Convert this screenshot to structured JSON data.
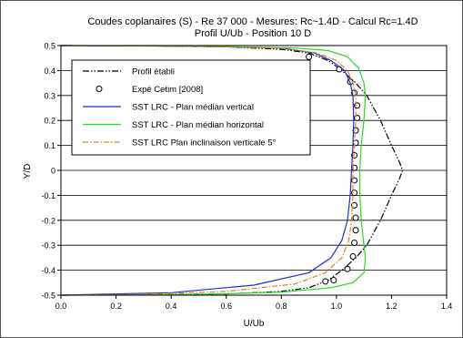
{
  "chart_data": {
    "type": "line",
    "title": "Coudes coplanaires (S) - Re 37 000  - Mesures: Rc~1.4D - Calcul Rc=1.4D",
    "subtitle": "Profil U/Ub - Position 10 D",
    "xlabel": "U/Ub",
    "ylabel": "Y/D",
    "xlim": [
      0,
      1.4
    ],
    "ylim": [
      -0.5,
      0.5
    ],
    "x_ticks": [
      "0.0",
      "0.2",
      "0.4",
      "0.6",
      "0.8",
      "1.0",
      "1.2",
      "1.4"
    ],
    "y_ticks": [
      "-0.5",
      "-0.4",
      "-0.3",
      "-0.2",
      "-0.1",
      "0",
      "0.1",
      "0.2",
      "0.3",
      "0.4",
      "0.5"
    ],
    "grid": "horizontal",
    "legend_position": "top-left",
    "series": [
      {
        "name": "Profil établi",
        "style": "dash-dot-dot",
        "color": "#000000",
        "points": [
          [
            0,
            0.5
          ],
          [
            0.3,
            0.499
          ],
          [
            0.6,
            0.495
          ],
          [
            0.8,
            0.485
          ],
          [
            0.9,
            0.47
          ],
          [
            0.97,
            0.44
          ],
          [
            1.02,
            0.4
          ],
          [
            1.07,
            0.35
          ],
          [
            1.11,
            0.3
          ],
          [
            1.16,
            0.2
          ],
          [
            1.2,
            0.1
          ],
          [
            1.23,
            0.03
          ],
          [
            1.24,
            0
          ],
          [
            1.23,
            -0.03
          ],
          [
            1.2,
            -0.1
          ],
          [
            1.16,
            -0.2
          ],
          [
            1.11,
            -0.3
          ],
          [
            1.07,
            -0.35
          ],
          [
            1.02,
            -0.4
          ],
          [
            0.97,
            -0.44
          ],
          [
            0.9,
            -0.47
          ],
          [
            0.8,
            -0.485
          ],
          [
            0.6,
            -0.495
          ],
          [
            0.3,
            -0.499
          ],
          [
            0,
            -0.5
          ]
        ]
      },
      {
        "name": "Expé Cetim [2008]",
        "style": "markers",
        "color": "#000000",
        "points": [
          [
            0.9,
            0.455
          ],
          [
            1.01,
            0.405
          ],
          [
            1.05,
            0.355
          ],
          [
            1.065,
            0.31
          ],
          [
            1.075,
            0.26
          ],
          [
            1.075,
            0.21
          ],
          [
            1.07,
            0.16
          ],
          [
            1.07,
            0.11
          ],
          [
            1.065,
            0.06
          ],
          [
            1.065,
            0.01
          ],
          [
            1.065,
            -0.04
          ],
          [
            1.065,
            -0.09
          ],
          [
            1.065,
            -0.14
          ],
          [
            1.07,
            -0.19
          ],
          [
            1.07,
            -0.24
          ],
          [
            1.065,
            -0.29
          ],
          [
            1.06,
            -0.345
          ],
          [
            1.04,
            -0.395
          ],
          [
            0.99,
            -0.44
          ],
          [
            0.96,
            -0.445
          ]
        ]
      },
      {
        "name": "SST LRC - Plan médian vertical",
        "style": "solid",
        "color": "#1f2fd6",
        "points": [
          [
            0,
            0.5
          ],
          [
            0.5,
            0.497
          ],
          [
            0.8,
            0.49
          ],
          [
            0.92,
            0.47
          ],
          [
            0.98,
            0.44
          ],
          [
            1.03,
            0.4
          ],
          [
            1.05,
            0.35
          ],
          [
            1.06,
            0.3
          ],
          [
            1.063,
            0.2
          ],
          [
            1.06,
            0.1
          ],
          [
            1.055,
            0
          ],
          [
            1.05,
            -0.1
          ],
          [
            1.04,
            -0.2
          ],
          [
            1.02,
            -0.28
          ],
          [
            0.98,
            -0.35
          ],
          [
            0.9,
            -0.41
          ],
          [
            0.7,
            -0.46
          ],
          [
            0.4,
            -0.49
          ],
          [
            0,
            -0.5
          ]
        ]
      },
      {
        "name": "SST LRC - Plan médian horizontal",
        "style": "solid",
        "color": "#22dd22",
        "points": [
          [
            0,
            0.5
          ],
          [
            0.5,
            0.498
          ],
          [
            0.85,
            0.49
          ],
          [
            0.97,
            0.48
          ],
          [
            1.04,
            0.455
          ],
          [
            1.08,
            0.41
          ],
          [
            1.1,
            0.35
          ],
          [
            1.105,
            0.3
          ],
          [
            1.1,
            0.2
          ],
          [
            1.09,
            0.1
          ],
          [
            1.085,
            0
          ],
          [
            1.085,
            -0.1
          ],
          [
            1.09,
            -0.2
          ],
          [
            1.1,
            -0.3
          ],
          [
            1.105,
            -0.35
          ],
          [
            1.1,
            -0.41
          ],
          [
            1.06,
            -0.45
          ],
          [
            0.98,
            -0.47
          ],
          [
            0.8,
            -0.488
          ],
          [
            0.5,
            -0.497
          ],
          [
            0,
            -0.5
          ]
        ]
      },
      {
        "name": "SST LRC Plan inclinaison verticale 5°",
        "style": "dash-dot",
        "color": "#e0801e",
        "points": [
          [
            0,
            0.5
          ],
          [
            0.5,
            0.497
          ],
          [
            0.8,
            0.49
          ],
          [
            0.93,
            0.47
          ],
          [
            1.0,
            0.44
          ],
          [
            1.04,
            0.4
          ],
          [
            1.06,
            0.35
          ],
          [
            1.07,
            0.3
          ],
          [
            1.07,
            0.2
          ],
          [
            1.065,
            0.1
          ],
          [
            1.06,
            0
          ],
          [
            1.06,
            -0.1
          ],
          [
            1.055,
            -0.2
          ],
          [
            1.045,
            -0.28
          ],
          [
            1.02,
            -0.35
          ],
          [
            0.96,
            -0.41
          ],
          [
            0.85,
            -0.455
          ],
          [
            0.6,
            -0.485
          ],
          [
            0.3,
            -0.497
          ],
          [
            0,
            -0.5
          ]
        ]
      }
    ]
  }
}
